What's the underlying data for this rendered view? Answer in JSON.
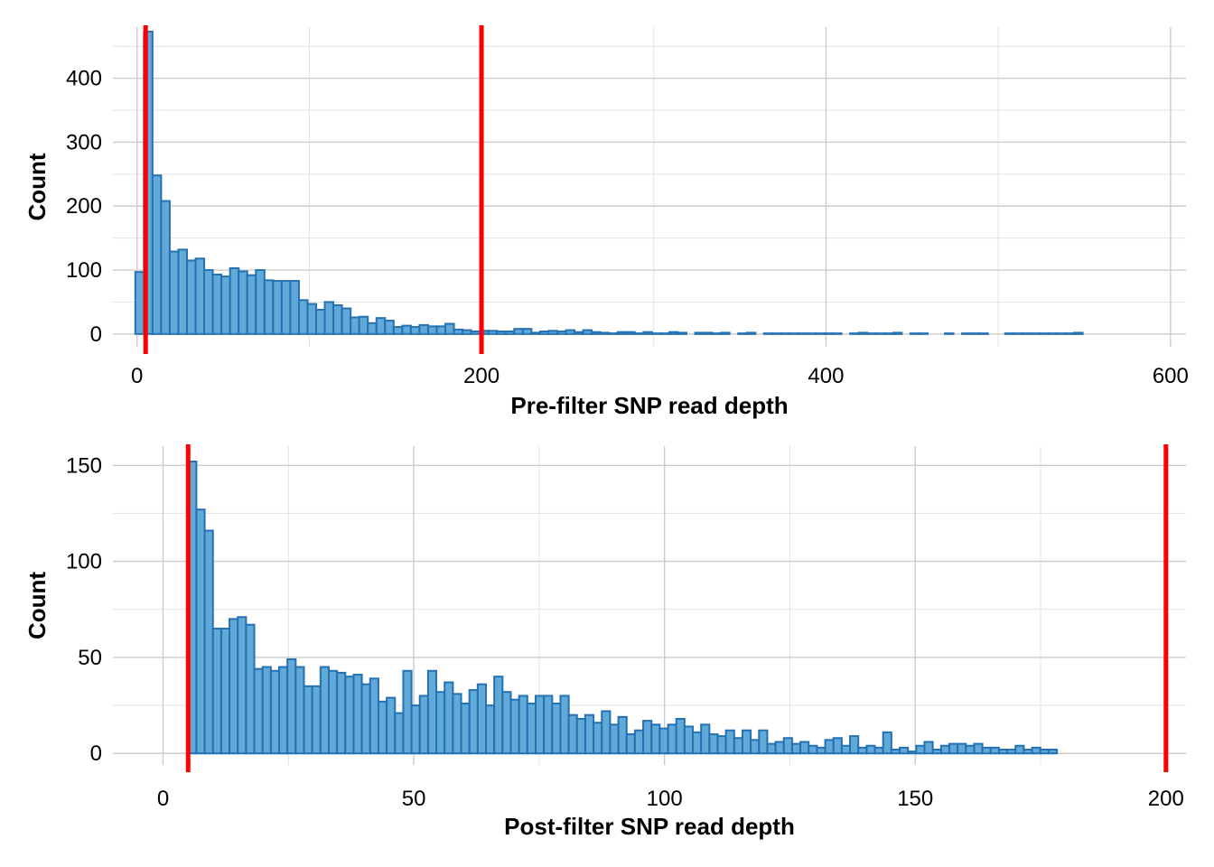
{
  "chart_data": [
    {
      "type": "bar",
      "subtype": "histogram",
      "xlabel": "Pre-filter SNP read depth",
      "ylabel": "Count",
      "xlim": [
        -14,
        609
      ],
      "ylim": [
        -20,
        480
      ],
      "x_ticks": [
        0,
        200,
        400,
        600
      ],
      "y_ticks": [
        0,
        100,
        200,
        300,
        400
      ],
      "grid": true,
      "bin_start": -1,
      "bin_width": 5,
      "values": [
        97,
        473,
        248,
        208,
        129,
        132,
        115,
        118,
        100,
        93,
        90,
        103,
        98,
        92,
        100,
        84,
        83,
        83,
        83,
        53,
        47,
        38,
        50,
        45,
        40,
        26,
        27,
        17,
        25,
        21,
        11,
        13,
        11,
        14,
        12,
        12,
        16,
        7,
        6,
        4,
        5,
        5,
        4,
        4,
        8,
        8,
        2,
        4,
        5,
        4,
        6,
        3,
        6,
        3,
        2,
        1,
        3,
        3,
        1,
        3,
        1,
        1,
        3,
        2,
        0,
        2,
        2,
        1,
        2,
        0,
        1,
        2,
        0,
        1,
        1,
        1,
        1,
        1,
        1,
        1,
        1,
        1,
        0,
        1,
        2,
        1,
        1,
        1,
        2,
        0,
        1,
        1,
        0,
        0,
        1,
        0,
        1,
        1,
        1,
        0,
        0,
        1,
        1,
        1,
        1,
        1,
        1,
        1,
        1,
        2
      ],
      "cutoff_lines": [
        5,
        200
      ],
      "colors": {
        "fill": "#61a9d6",
        "stroke": "#2471b3",
        "cutoff": "#ff0000"
      }
    },
    {
      "type": "bar",
      "subtype": "histogram",
      "xlabel": "Post-filter SNP read depth",
      "ylabel": "Count",
      "xlim": [
        -10,
        204
      ],
      "ylim": [
        -6,
        160
      ],
      "x_ticks": [
        0,
        50,
        100,
        150,
        200
      ],
      "y_ticks": [
        0,
        50,
        100,
        150
      ],
      "grid": true,
      "bin_start": 5,
      "bin_width": 1.65,
      "values": [
        152,
        127,
        116,
        65,
        65,
        70,
        71,
        67,
        44,
        45,
        43,
        45,
        49,
        45,
        35,
        35,
        45,
        43,
        42,
        40,
        41,
        36,
        39,
        27,
        29,
        21,
        43,
        25,
        30,
        43,
        32,
        37,
        31,
        26,
        33,
        36,
        25,
        40,
        32,
        28,
        30,
        26,
        30,
        30,
        26,
        30,
        20,
        18,
        20,
        16,
        22,
        15,
        19,
        10,
        12,
        17,
        15,
        13,
        15,
        18,
        14,
        11,
        15,
        10,
        9,
        12,
        8,
        12,
        7,
        12,
        5,
        6,
        8,
        5,
        6,
        4,
        3,
        7,
        8,
        4,
        9,
        3,
        4,
        3,
        11,
        2,
        3,
        1,
        4,
        6,
        2,
        4,
        5,
        5,
        4,
        5,
        3,
        3,
        2,
        2,
        4,
        2,
        3,
        2,
        2
      ],
      "cutoff_lines": [
        5,
        200
      ],
      "colors": {
        "fill": "#61a9d6",
        "stroke": "#2471b3",
        "cutoff": "#ff0000"
      }
    }
  ]
}
